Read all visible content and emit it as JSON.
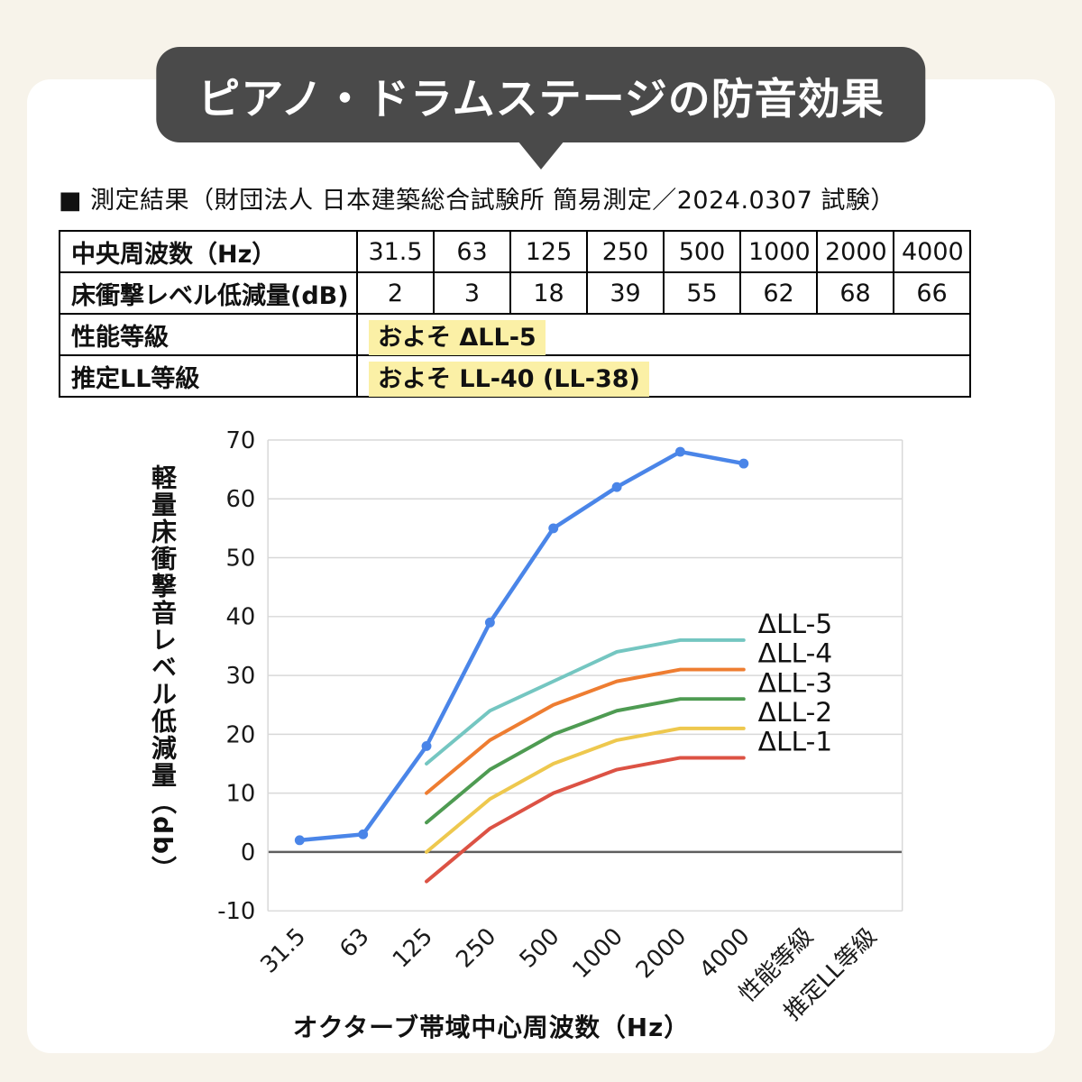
{
  "banner": {
    "title": "ピアノ・ドラムステージの防音効果",
    "color": "#4a4a4a"
  },
  "heading": "■ 測定結果（財団法人 日本建築総合試験所 簡易測定／2024.0307 試験）",
  "table": {
    "highlight_color": "#fbf0a6",
    "rows": [
      {
        "label": "中央周波数（Hz）",
        "values": [
          "31.5",
          "63",
          "125",
          "250",
          "500",
          "1000",
          "2000",
          "4000"
        ]
      },
      {
        "label": "床衝撃レベル低減量(dB)",
        "values": [
          "2",
          "3",
          "18",
          "39",
          "55",
          "62",
          "68",
          "66"
        ]
      },
      {
        "label": "性能等級",
        "highlight": "およそ ΔLL-5"
      },
      {
        "label": "推定LL等級",
        "highlight": "およそ LL-40 (LL-38)"
      }
    ]
  },
  "chart_data": {
    "type": "line",
    "categories": [
      "31.5",
      "63",
      "125",
      "250",
      "500",
      "1000",
      "2000",
      "4000",
      "性能等級",
      "推定LL等級"
    ],
    "series": [
      {
        "name": "",
        "color": "#4a85e8",
        "marker": true,
        "start_index": 0,
        "values": [
          2,
          3,
          18,
          39,
          55,
          62,
          68,
          66
        ]
      },
      {
        "name": "ΔLL-5",
        "end_label": "ΔLL-5",
        "color": "#74c6c1",
        "marker": false,
        "start_index": 2,
        "values": [
          15,
          24,
          29,
          34,
          36,
          36
        ]
      },
      {
        "name": "ΔLL-4",
        "end_label": "ΔLL-4",
        "color": "#ee7d31",
        "marker": false,
        "start_index": 2,
        "values": [
          10,
          19,
          25,
          29,
          31,
          31
        ]
      },
      {
        "name": "ΔLL-3",
        "end_label": "ΔLL-3",
        "color": "#4e9b52",
        "marker": false,
        "start_index": 2,
        "values": [
          5,
          14,
          20,
          24,
          26,
          26
        ]
      },
      {
        "name": "ΔLL-2",
        "end_label": "ΔLL-2",
        "color": "#eec84e",
        "marker": false,
        "start_index": 2,
        "values": [
          0,
          9,
          15,
          19,
          21,
          21
        ]
      },
      {
        "name": "ΔLL-1",
        "end_label": "ΔLL-1",
        "color": "#dc5244",
        "marker": false,
        "start_index": 2,
        "values": [
          -5,
          4,
          10,
          14,
          16,
          16
        ]
      }
    ],
    "ylim": [
      -10,
      70
    ],
    "ytick_step": 10,
    "ylabel": "軽量床衝撃音レベル低減量（db）",
    "xlabel": "オクターブ帯域中心周波数（Hz）",
    "grid_color": "#d8d8d8",
    "zero_line_color": "#5f5f5f",
    "legend_position": "right-of-lines",
    "grid": true
  }
}
